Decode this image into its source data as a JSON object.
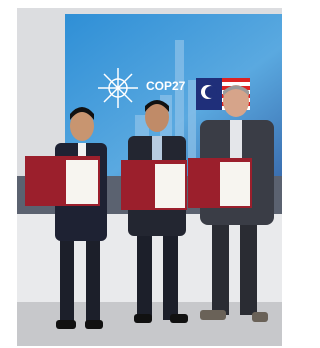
{
  "photo": {
    "screen_text": "COP27"
  }
}
